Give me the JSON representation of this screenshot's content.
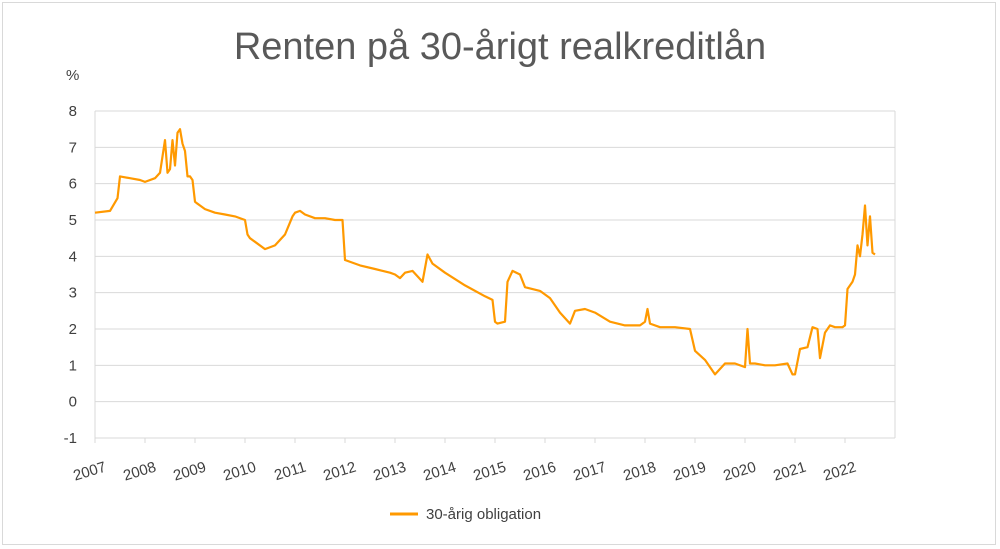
{
  "chart_data": {
    "type": "line",
    "title": "Renten på 30-årigt realkreditlån",
    "ylabel": "%",
    "xlabel": "",
    "ylim": [
      -1,
      8
    ],
    "yticks": [
      "-1",
      "0",
      "1",
      "2",
      "3",
      "4",
      "5",
      "6",
      "7",
      "8"
    ],
    "xlim": [
      2007,
      2023
    ],
    "xticks": [
      "2007",
      "2008",
      "2009",
      "2010",
      "2011",
      "2012",
      "2013",
      "2014",
      "2015",
      "2016",
      "2017",
      "2018",
      "2019",
      "2020",
      "2021",
      "2022"
    ],
    "grid": "horizontal",
    "legend": "bottom",
    "color": "#FF9900",
    "series": [
      {
        "name": "30-årig obligation",
        "x": [
          2007.0,
          2007.3,
          2007.45,
          2007.5,
          2007.7,
          2007.9,
          2008.0,
          2008.2,
          2008.3,
          2008.4,
          2008.45,
          2008.5,
          2008.55,
          2008.6,
          2008.65,
          2008.7,
          2008.75,
          2008.8,
          2008.85,
          2008.9,
          2008.95,
          2009.0,
          2009.05,
          2009.1,
          2009.2,
          2009.4,
          2009.6,
          2009.8,
          2010.0,
          2010.05,
          2010.1,
          2010.2,
          2010.4,
          2010.6,
          2010.8,
          2010.95,
          2011.0,
          2011.1,
          2011.2,
          2011.4,
          2011.6,
          2011.8,
          2011.95,
          2012.0,
          2012.3,
          2012.6,
          2012.9,
          2013.0,
          2013.1,
          2013.2,
          2013.35,
          2013.55,
          2013.65,
          2013.75,
          2014.0,
          2014.4,
          2014.8,
          2014.95,
          2015.0,
          2015.05,
          2015.2,
          2015.25,
          2015.35,
          2015.5,
          2015.6,
          2015.9,
          2016.1,
          2016.3,
          2016.5,
          2016.6,
          2016.8,
          2017.0,
          2017.3,
          2017.6,
          2017.9,
          2018.0,
          2018.05,
          2018.1,
          2018.3,
          2018.6,
          2018.9,
          2019.0,
          2019.2,
          2019.4,
          2019.6,
          2019.8,
          2020.0,
          2020.05,
          2020.1,
          2020.2,
          2020.4,
          2020.6,
          2020.85,
          2020.95,
          2021.0,
          2021.1,
          2021.25,
          2021.35,
          2021.45,
          2021.5,
          2021.6,
          2021.7,
          2021.8,
          2021.95,
          2022.0,
          2022.05,
          2022.1,
          2022.15,
          2022.2,
          2022.25,
          2022.3,
          2022.35,
          2022.4,
          2022.45,
          2022.5,
          2022.55,
          2022.6
        ],
        "values": [
          5.2,
          5.25,
          5.6,
          6.2,
          6.15,
          6.1,
          6.05,
          6.15,
          6.3,
          7.2,
          6.3,
          6.4,
          7.2,
          6.5,
          7.4,
          7.5,
          7.1,
          6.9,
          6.2,
          6.2,
          6.1,
          5.5,
          5.45,
          5.4,
          5.3,
          5.2,
          5.15,
          5.1,
          5.0,
          4.6,
          4.5,
          4.4,
          4.2,
          4.3,
          4.6,
          5.1,
          5.2,
          5.25,
          5.15,
          5.05,
          5.05,
          5.0,
          5.0,
          3.9,
          3.75,
          3.65,
          3.55,
          3.5,
          3.4,
          3.55,
          3.6,
          3.3,
          4.05,
          3.8,
          3.55,
          3.2,
          2.9,
          2.8,
          2.2,
          2.15,
          2.2,
          3.3,
          3.6,
          3.5,
          3.15,
          3.05,
          2.85,
          2.45,
          2.15,
          2.5,
          2.55,
          2.45,
          2.2,
          2.1,
          2.1,
          2.2,
          2.55,
          2.15,
          2.05,
          2.05,
          2.0,
          1.4,
          1.15,
          0.75,
          1.05,
          1.05,
          0.95,
          2.0,
          1.05,
          1.05,
          1.0,
          1.0,
          1.05,
          0.75,
          0.75,
          1.45,
          1.5,
          2.05,
          2.0,
          1.2,
          1.9,
          2.1,
          2.05,
          2.05,
          2.1,
          3.1,
          3.2,
          3.3,
          3.5,
          4.3,
          4.0,
          4.6,
          5.4,
          4.3,
          5.1,
          4.1,
          4.05
        ]
      }
    ]
  }
}
